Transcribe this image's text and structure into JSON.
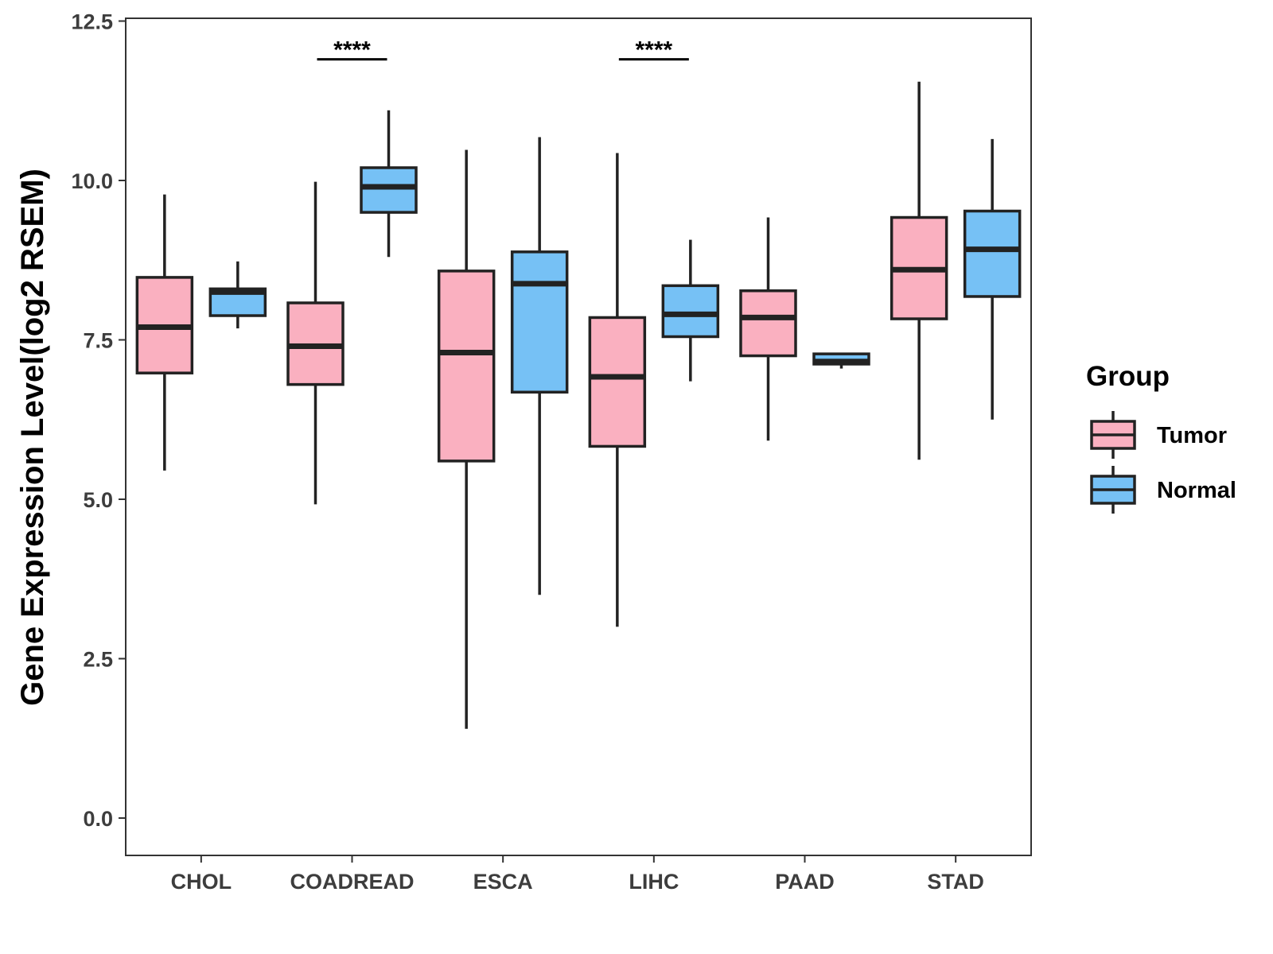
{
  "chart_data": {
    "type": "boxplot",
    "title": "",
    "xlabel": "",
    "ylabel": "Gene Expression Level(log2 RSEM)",
    "ylim": [
      -0.6,
      12.5
    ],
    "yticks": [
      "0.0",
      "2.5",
      "5.0",
      "7.5",
      "10.0",
      "12.5"
    ],
    "categories": [
      "CHOL",
      "COADREAD",
      "ESCA",
      "LIHC",
      "PAAD",
      "STAD"
    ],
    "legend": {
      "title": "Group",
      "position": "right",
      "entries": [
        {
          "name": "Tumor",
          "color": "#fab0c0"
        },
        {
          "name": "Normal",
          "color": "#76c1f5"
        }
      ]
    },
    "series": [
      {
        "name": "Tumor",
        "color": "#fab0c0",
        "boxes": [
          {
            "category": "CHOL",
            "min": 5.45,
            "q1": 6.98,
            "median": 7.7,
            "q3": 8.48,
            "max": 9.78
          },
          {
            "category": "COADREAD",
            "min": 4.92,
            "q1": 6.8,
            "median": 7.4,
            "q3": 8.08,
            "max": 9.98
          },
          {
            "category": "ESCA",
            "min": 1.4,
            "q1": 5.6,
            "median": 7.3,
            "q3": 8.58,
            "max": 10.48
          },
          {
            "category": "LIHC",
            "min": 3.0,
            "q1": 5.83,
            "median": 6.92,
            "q3": 7.85,
            "max": 10.43
          },
          {
            "category": "PAAD",
            "min": 5.92,
            "q1": 7.25,
            "median": 7.85,
            "q3": 8.27,
            "max": 9.42
          },
          {
            "category": "STAD",
            "min": 5.62,
            "q1": 7.83,
            "median": 8.6,
            "q3": 9.42,
            "max": 11.55
          }
        ]
      },
      {
        "name": "Normal",
        "color": "#76c1f5",
        "boxes": [
          {
            "category": "CHOL",
            "min": 7.68,
            "q1": 7.88,
            "median": 8.25,
            "q3": 8.3,
            "max": 8.73
          },
          {
            "category": "COADREAD",
            "min": 8.8,
            "q1": 9.5,
            "median": 9.9,
            "q3": 10.2,
            "max": 11.1
          },
          {
            "category": "ESCA",
            "min": 3.5,
            "q1": 6.68,
            "median": 8.38,
            "q3": 8.88,
            "max": 10.68
          },
          {
            "category": "LIHC",
            "min": 6.85,
            "q1": 7.55,
            "median": 7.9,
            "q3": 8.35,
            "max": 9.07
          },
          {
            "category": "PAAD",
            "min": 7.05,
            "q1": 7.12,
            "median": 7.16,
            "q3": 7.28,
            "max": 7.28
          },
          {
            "category": "STAD",
            "min": 6.25,
            "q1": 8.18,
            "median": 8.92,
            "q3": 9.52,
            "max": 10.65
          }
        ]
      }
    ],
    "annotations": [
      {
        "category": "COADREAD",
        "label": "****",
        "y": 11.9
      },
      {
        "category": "LIHC",
        "label": "****",
        "y": 11.9
      }
    ]
  }
}
